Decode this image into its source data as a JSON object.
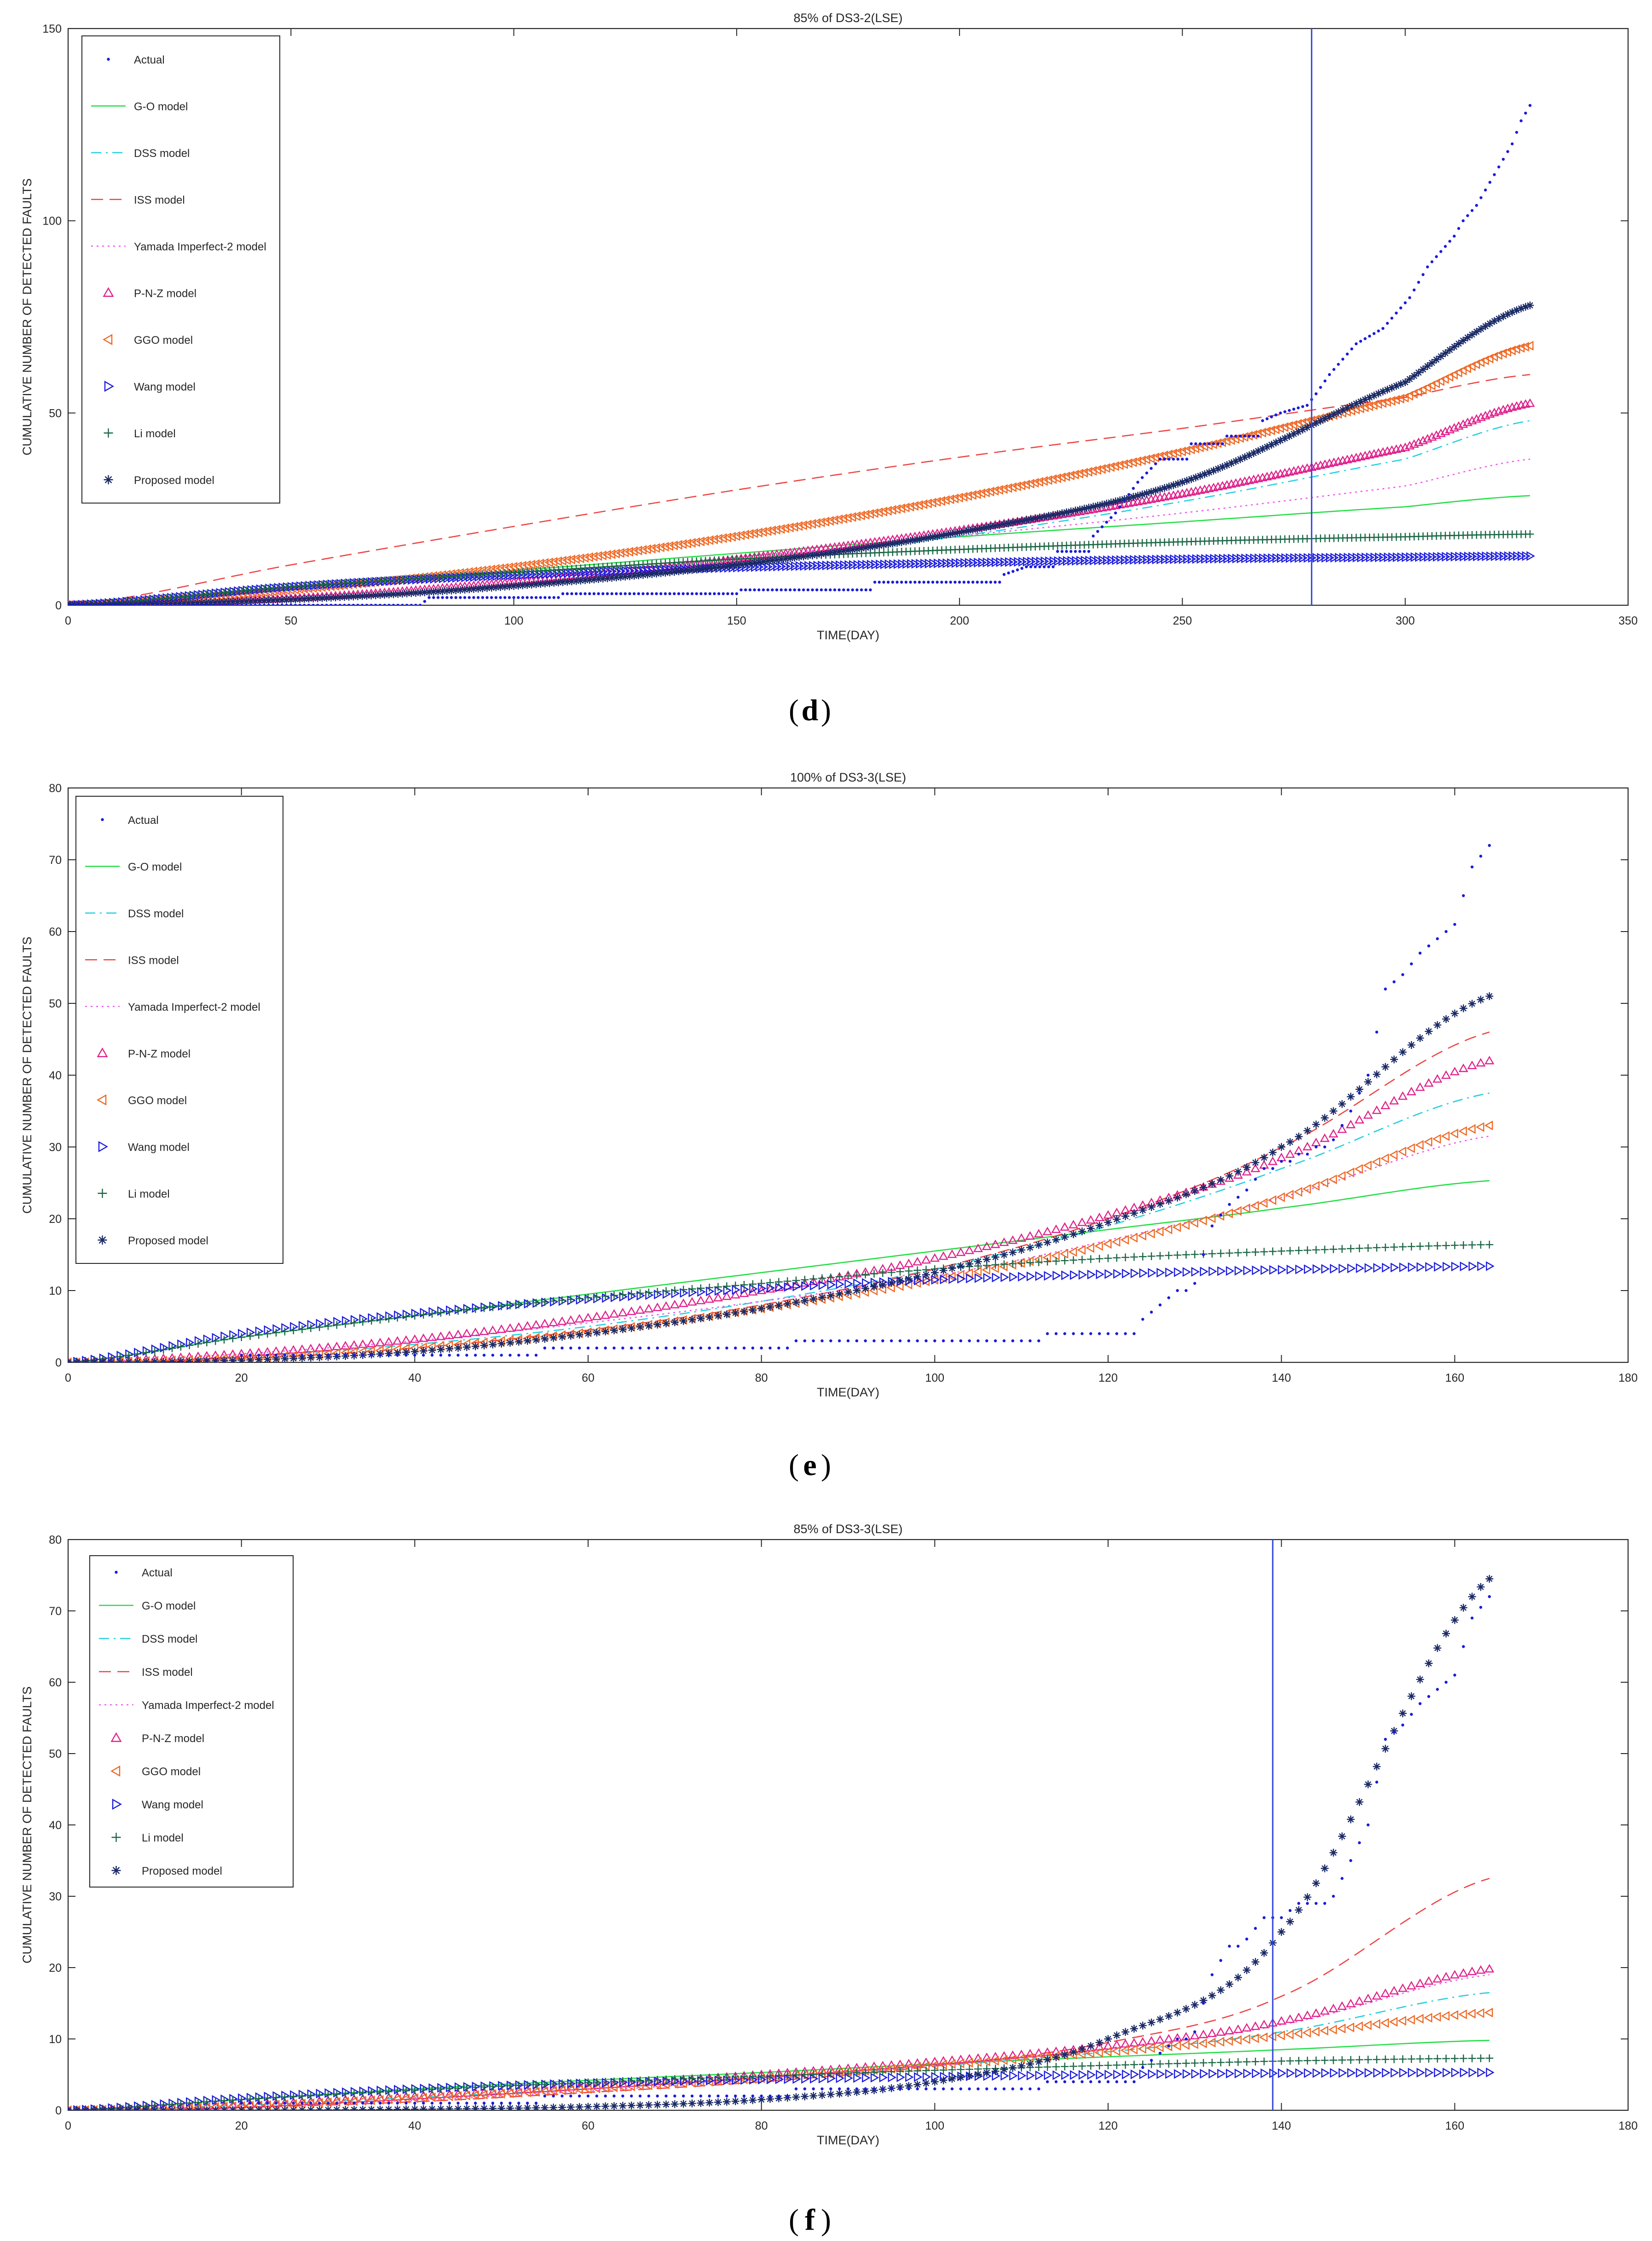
{
  "panel_labels": [
    "d",
    "e",
    "f"
  ],
  "style": {
    "Actual": {
      "color": "#1a1adb",
      "marker": "dot",
      "line": "none"
    },
    "G-O model": {
      "color": "#22dd44",
      "line": "solid"
    },
    "DSS model": {
      "color": "#22cfe0",
      "line": "dashdot"
    },
    "ISS model": {
      "color": "#ee4444",
      "line": "dashed"
    },
    "Yamada Imperfect-2  model": {
      "color": "#ee55ee",
      "line": "dotted"
    },
    "P-N-Z model": {
      "color": "#e0208a",
      "marker": "tri-up"
    },
    "GGO model": {
      "color": "#ee6622",
      "marker": "tri-left"
    },
    "Wang model": {
      "color": "#1a1add",
      "marker": "tri-right"
    },
    "Li model": {
      "color": "#1a6644",
      "marker": "plus"
    },
    "Proposed model": {
      "color": "#1a2a66",
      "marker": "star"
    },
    "cutoff_line_color": "#3344dd"
  },
  "chart_data": [
    {
      "type": "scatter",
      "title": "85% of DS3-2(LSE)",
      "xlabel": "TIME(DAY)",
      "ylabel": "CUMULATIVE NUMBER OF DETECTED FAULTS",
      "xlim": [
        0,
        350
      ],
      "ylim": [
        0,
        150
      ],
      "xticks": [
        0,
        50,
        100,
        150,
        200,
        250,
        300,
        350
      ],
      "yticks": [
        0,
        50,
        100,
        150
      ],
      "xmax_data": 328,
      "cutoff_x": 279,
      "legend_position": "top-left",
      "actual_points": [
        [
          0,
          0
        ],
        [
          80,
          1
        ],
        [
          81,
          2
        ],
        [
          110,
          2
        ],
        [
          111,
          3
        ],
        [
          150,
          3
        ],
        [
          151,
          4
        ],
        [
          180,
          4
        ],
        [
          181,
          6
        ],
        [
          200,
          6
        ],
        [
          210,
          8
        ],
        [
          215,
          10
        ],
        [
          222,
          14
        ],
        [
          230,
          18
        ],
        [
          235,
          24
        ],
        [
          240,
          32
        ],
        [
          245,
          38
        ],
        [
          252,
          42
        ],
        [
          260,
          44
        ],
        [
          268,
          48
        ],
        [
          272,
          50
        ],
        [
          278,
          52
        ],
        [
          280,
          55
        ],
        [
          283,
          60
        ],
        [
          286,
          64
        ],
        [
          289,
          68
        ],
        [
          292,
          70
        ],
        [
          295,
          72
        ],
        [
          298,
          76
        ],
        [
          301,
          80
        ],
        [
          303,
          84
        ],
        [
          305,
          88
        ],
        [
          308,
          92
        ],
        [
          311,
          96
        ],
        [
          313,
          100
        ],
        [
          316,
          104
        ],
        [
          318,
          108
        ],
        [
          320,
          112
        ],
        [
          322,
          116
        ],
        [
          324,
          120
        ],
        [
          326,
          126
        ],
        [
          328,
          130
        ]
      ],
      "series": [
        {
          "name": "G-O model",
          "x": [
            0,
            50,
            100,
            150,
            200,
            250,
            300,
            328
          ],
          "y": [
            0,
            4.5,
            9,
            13.5,
            17.8,
            21.7,
            25.6,
            28.5
          ]
        },
        {
          "name": "DSS model",
          "x": [
            0,
            50,
            100,
            150,
            200,
            250,
            300,
            328
          ],
          "y": [
            0,
            1.6,
            5.5,
            11,
            18,
            27,
            38,
            48
          ]
        },
        {
          "name": "ISS model",
          "x": [
            0,
            50,
            100,
            150,
            200,
            250,
            300,
            328
          ],
          "y": [
            0,
            10.5,
            20.5,
            30,
            38.5,
            46,
            54,
            60
          ]
        },
        {
          "name": "Yamada Imperfect-2  model",
          "x": [
            0,
            50,
            100,
            150,
            200,
            250,
            300,
            328
          ],
          "y": [
            0,
            3.5,
            8,
            12.5,
            18,
            24,
            31,
            38
          ]
        },
        {
          "name": "P-N-Z model",
          "x": [
            0,
            50,
            100,
            150,
            200,
            250,
            300,
            328
          ],
          "y": [
            0,
            1.8,
            6,
            12,
            19.5,
            29,
            41,
            52.5
          ]
        },
        {
          "name": "GGO model",
          "x": [
            0,
            50,
            100,
            150,
            200,
            250,
            300,
            328
          ],
          "y": [
            0,
            4,
            10,
            18,
            28,
            40,
            54,
            67.5
          ]
        },
        {
          "name": "Wang model",
          "x": [
            0,
            50,
            100,
            150,
            200,
            250,
            300,
            328
          ],
          "y": [
            0,
            4.8,
            7.8,
            9.8,
            11,
            12,
            12.5,
            12.8
          ]
        },
        {
          "name": "Li model",
          "x": [
            0,
            50,
            100,
            150,
            200,
            250,
            300,
            328
          ],
          "y": [
            0,
            4.8,
            8.5,
            12,
            14.5,
            16.5,
            17.8,
            18.5
          ]
        },
        {
          "name": "Proposed model",
          "x": [
            0,
            50,
            100,
            150,
            200,
            250,
            300,
            328
          ],
          "y": [
            0,
            1.5,
            5,
            10.5,
            19,
            32,
            58,
            78
          ]
        }
      ]
    },
    {
      "type": "scatter",
      "title": "100% of DS3-3(LSE)",
      "xlabel": "TIME(DAY)",
      "ylabel": "CUMULATIVE NUMBER OF DETECTED FAULTS",
      "xlim": [
        0,
        180
      ],
      "ylim": [
        0,
        80
      ],
      "xticks": [
        0,
        20,
        40,
        60,
        80,
        100,
        120,
        140,
        160,
        180
      ],
      "yticks": [
        0,
        10,
        20,
        30,
        40,
        50,
        60,
        70,
        80
      ],
      "xmax_data": 164,
      "cutoff_x": null,
      "legend_position": "top-left",
      "actual_points": [
        [
          0,
          0
        ],
        [
          20,
          1
        ],
        [
          54,
          1
        ],
        [
          55,
          2
        ],
        [
          83,
          2
        ],
        [
          84,
          3
        ],
        [
          112,
          3
        ],
        [
          113,
          4
        ],
        [
          123,
          4
        ],
        [
          124,
          6
        ],
        [
          126,
          8
        ],
        [
          128,
          10
        ],
        [
          130,
          11
        ],
        [
          132,
          19
        ],
        [
          134,
          22
        ],
        [
          136,
          24
        ],
        [
          138,
          27
        ],
        [
          140,
          28
        ],
        [
          142,
          29
        ],
        [
          144,
          30
        ],
        [
          146,
          31
        ],
        [
          148,
          35
        ],
        [
          150,
          40
        ],
        [
          152,
          52
        ],
        [
          154,
          54
        ],
        [
          156,
          57
        ],
        [
          158,
          59
        ],
        [
          160,
          61
        ],
        [
          162,
          69
        ],
        [
          164,
          72
        ]
      ],
      "series": [
        {
          "name": "G-O model",
          "x": [
            0,
            20,
            40,
            60,
            80,
            100,
            120,
            140,
            164
          ],
          "y": [
            0,
            3.5,
            6.5,
            9.5,
            12.5,
            15.5,
            18.5,
            21.5,
            25.3
          ]
        },
        {
          "name": "DSS model",
          "x": [
            0,
            20,
            40,
            60,
            80,
            100,
            120,
            140,
            164
          ],
          "y": [
            0,
            0.8,
            2.5,
            5,
            8.5,
            13,
            19,
            27,
            37.5
          ]
        },
        {
          "name": "ISS model",
          "x": [
            0,
            20,
            40,
            60,
            80,
            100,
            120,
            140,
            164
          ],
          "y": [
            0,
            0.5,
            2,
            4.5,
            8,
            13,
            20,
            30,
            46
          ]
        },
        {
          "name": "Yamada Imperfect-2  model",
          "x": [
            0,
            20,
            40,
            60,
            80,
            100,
            120,
            140,
            164
          ],
          "y": [
            0,
            1.2,
            3,
            5.5,
            8.5,
            12,
            17,
            23,
            31.5
          ]
        },
        {
          "name": "P-N-Z model",
          "x": [
            0,
            20,
            40,
            60,
            80,
            100,
            120,
            140,
            164
          ],
          "y": [
            0,
            1.2,
            3.2,
            6.2,
            10,
            14.5,
            20.5,
            28.5,
            42
          ]
        },
        {
          "name": "GGO model",
          "x": [
            0,
            20,
            40,
            60,
            80,
            100,
            120,
            140,
            164
          ],
          "y": [
            0,
            0.6,
            2,
            4.2,
            7.5,
            11.5,
            16.5,
            23,
            33
          ]
        },
        {
          "name": "Wang model",
          "x": [
            0,
            20,
            40,
            60,
            80,
            100,
            120,
            140,
            164
          ],
          "y": [
            0,
            4,
            6.8,
            8.8,
            10.3,
            11.5,
            12.3,
            12.9,
            13.4
          ]
        },
        {
          "name": "Li model",
          "x": [
            0,
            20,
            40,
            60,
            80,
            100,
            120,
            140,
            164
          ],
          "y": [
            0,
            3.5,
            6.5,
            9,
            11,
            13,
            14.5,
            15.5,
            16.4
          ]
        },
        {
          "name": "Proposed model",
          "x": [
            0,
            20,
            40,
            60,
            80,
            100,
            120,
            140,
            164
          ],
          "y": [
            0,
            0.3,
            1.5,
            4,
            7.5,
            12.5,
            19.5,
            30,
            51
          ]
        }
      ]
    },
    {
      "type": "scatter",
      "title": "85% of DS3-3(LSE)",
      "xlabel": "TIME(DAY)",
      "ylabel": "CUMULATIVE NUMBER OF DETECTED FAULTS",
      "xlim": [
        0,
        180
      ],
      "ylim": [
        0,
        80
      ],
      "xticks": [
        0,
        20,
        40,
        60,
        80,
        100,
        120,
        140,
        160,
        180
      ],
      "yticks": [
        0,
        10,
        20,
        30,
        40,
        50,
        60,
        70,
        80
      ],
      "xmax_data": 164,
      "cutoff_x": 139,
      "legend_position": "top-left",
      "actual_points": [
        [
          0,
          0
        ],
        [
          20,
          1
        ],
        [
          54,
          1
        ],
        [
          55,
          2
        ],
        [
          83,
          2
        ],
        [
          84,
          3
        ],
        [
          112,
          3
        ],
        [
          113,
          4
        ],
        [
          123,
          4
        ],
        [
          124,
          6
        ],
        [
          126,
          8
        ],
        [
          128,
          10
        ],
        [
          130,
          11
        ],
        [
          132,
          19
        ],
        [
          134,
          23
        ],
        [
          136,
          24
        ],
        [
          138,
          27
        ],
        [
          140,
          27
        ],
        [
          142,
          29
        ],
        [
          144,
          29
        ],
        [
          146,
          30
        ],
        [
          148,
          35
        ],
        [
          150,
          40
        ],
        [
          152,
          52
        ],
        [
          154,
          54
        ],
        [
          156,
          57
        ],
        [
          158,
          59
        ],
        [
          160,
          61
        ],
        [
          162,
          69
        ],
        [
          164,
          72
        ]
      ],
      "series": [
        {
          "name": "G-O model",
          "x": [
            0,
            20,
            40,
            60,
            80,
            100,
            120,
            140,
            164
          ],
          "y": [
            0,
            1.5,
            3,
            4.2,
            5.3,
            6.5,
            7.5,
            8.5,
            9.8
          ]
        },
        {
          "name": "DSS model",
          "x": [
            0,
            20,
            40,
            60,
            80,
            100,
            120,
            140,
            164
          ],
          "y": [
            0,
            0.7,
            1.8,
            3,
            4.5,
            6.2,
            8.2,
            11,
            16.5
          ]
        },
        {
          "name": "ISS model",
          "x": [
            0,
            20,
            40,
            60,
            80,
            100,
            120,
            140,
            164
          ],
          "y": [
            0,
            0.4,
            1.2,
            2.5,
            4,
            6.2,
            9.5,
            16,
            32.5
          ]
        },
        {
          "name": "Yamada Imperfect-2  model",
          "x": [
            0,
            20,
            40,
            60,
            80,
            100,
            120,
            140,
            164
          ],
          "y": [
            0,
            0.5,
            1.4,
            2.7,
            4.3,
            6.2,
            8.7,
            12,
            19
          ]
        },
        {
          "name": "P-N-Z model",
          "x": [
            0,
            20,
            40,
            60,
            80,
            100,
            120,
            140,
            164
          ],
          "y": [
            0,
            0.8,
            2,
            3.4,
            5,
            6.8,
            9,
            12.5,
            19.8
          ]
        },
        {
          "name": "GGO model",
          "x": [
            0,
            20,
            40,
            60,
            80,
            100,
            120,
            140,
            164
          ],
          "y": [
            0,
            0.6,
            1.7,
            3,
            4.5,
            6.3,
            8.2,
            10.5,
            13.7
          ]
        },
        {
          "name": "Wang model",
          "x": [
            0,
            20,
            40,
            60,
            80,
            100,
            120,
            140,
            164
          ],
          "y": [
            0,
            1.7,
            3,
            3.8,
            4.3,
            4.7,
            5,
            5.2,
            5.3
          ]
        },
        {
          "name": "Li model",
          "x": [
            0,
            20,
            40,
            60,
            80,
            100,
            120,
            140,
            164
          ],
          "y": [
            0,
            1.5,
            2.8,
            3.9,
            4.8,
            5.6,
            6.3,
            6.9,
            7.3
          ]
        },
        {
          "name": "Proposed model",
          "x": [
            0,
            20,
            40,
            60,
            80,
            100,
            120,
            140,
            164
          ],
          "y": [
            0,
            0.02,
            0.15,
            0.5,
            1.5,
            4,
            10,
            25,
            74.5
          ]
        }
      ]
    }
  ]
}
